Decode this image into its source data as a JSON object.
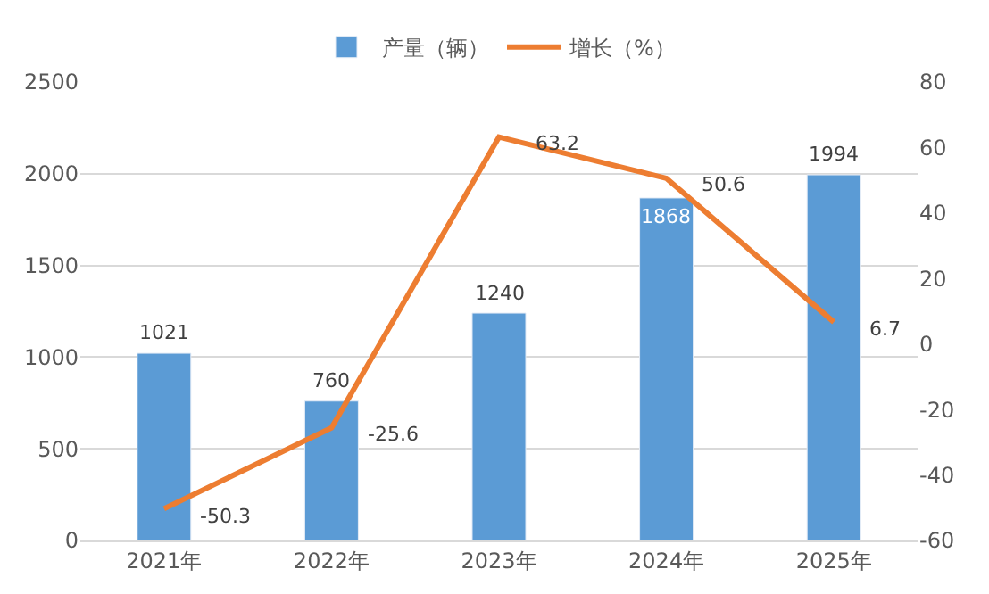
{
  "chart_data": {
    "type": "bar",
    "categories": [
      "2021年",
      "2022年",
      "2023年",
      "2024年",
      "2025年"
    ],
    "series": [
      {
        "name": "产量（辆）",
        "type": "bar",
        "color": "#5b9bd5",
        "values": [
          1021,
          760,
          1240,
          1868,
          1994
        ]
      },
      {
        "name": "增长（%）",
        "type": "line",
        "axis": "y2",
        "color": "#ed7d31",
        "values": [
          -50.3,
          -25.6,
          63.2,
          50.6,
          6.7
        ]
      }
    ],
    "ylim": [
      0,
      2500
    ],
    "yticks": [
      0,
      500,
      1000,
      1500,
      2000,
      2500
    ],
    "y2lim": [
      -60,
      80
    ],
    "y2ticks": [
      -60,
      -40,
      -20,
      0,
      20,
      40,
      60,
      80
    ],
    "data_labels": true,
    "grid": "y",
    "legend": "top",
    "marker": "none"
  }
}
